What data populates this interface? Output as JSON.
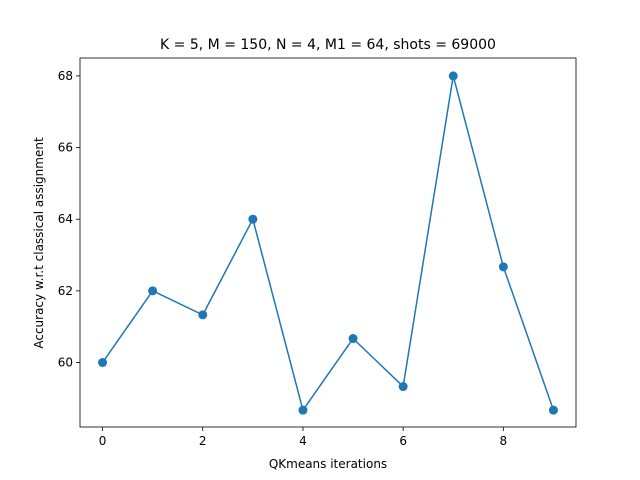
{
  "chart_data": {
    "type": "line",
    "title": "K = 5, M = 150, N = 4, M1 = 64, shots = 69000",
    "xlabel": "QKmeans iterations",
    "ylabel": "Accuracy w.r.t classical assignment",
    "xlim": [
      -0.45,
      9.45
    ],
    "ylim": [
      58.2,
      68.5
    ],
    "x_ticks": [
      0,
      2,
      4,
      6,
      8
    ],
    "y_ticks": [
      60,
      62,
      64,
      66,
      68
    ],
    "grid": false,
    "legend": "none",
    "series": [
      {
        "color": "#1f77b4",
        "marker": "circle",
        "x": [
          0,
          1,
          2,
          3,
          4,
          5,
          6,
          7,
          8,
          9
        ],
        "y": [
          60.0,
          62.0,
          61.33,
          64.0,
          58.67,
          60.67,
          59.33,
          68.0,
          62.67,
          58.67
        ]
      }
    ]
  }
}
